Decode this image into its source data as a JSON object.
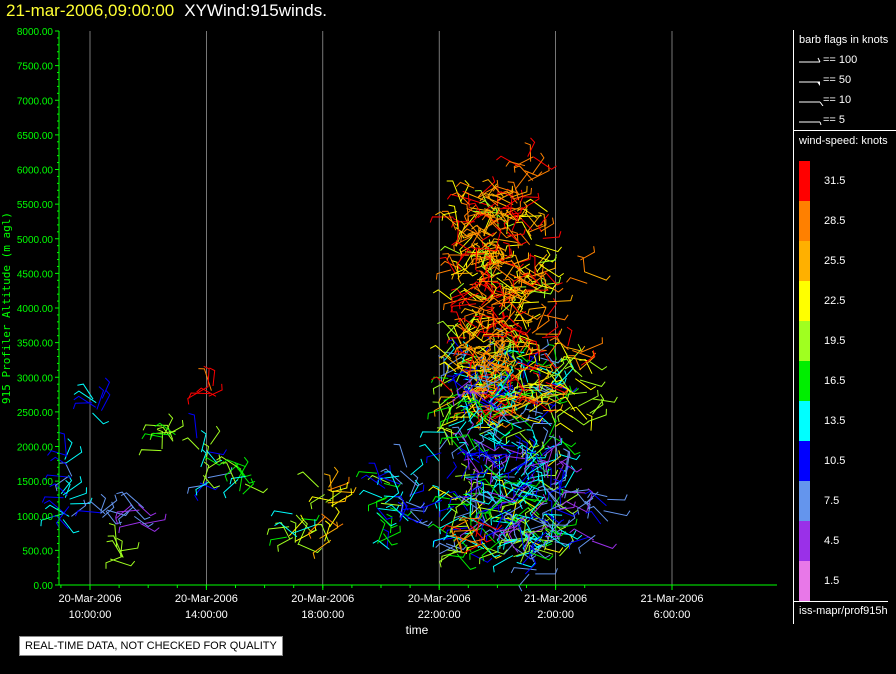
{
  "header": {
    "timestamp": "21-mar-2006,09:00:00",
    "product": "XYWind:915winds."
  },
  "chart_data": {
    "type": "scatter",
    "subtype": "wind-barb time-height",
    "ylabel": "915 Profiler Altitude (m agl)",
    "xlabel": "time",
    "ylim": [
      0,
      8000
    ],
    "y_ticks": [
      "0.00",
      "500.00",
      "1000.00",
      "1500.00",
      "2000.00",
      "2500.00",
      "3000.00",
      "3500.00",
      "4000.00",
      "4500.00",
      "5000.00",
      "5500.00",
      "6000.00",
      "6500.00",
      "7000.00",
      "7500.00",
      "8000.00"
    ],
    "x_ticks": [
      {
        "date": "20-Mar-2006",
        "time": "10:00:00"
      },
      {
        "date": "20-Mar-2006",
        "time": "14:00:00"
      },
      {
        "date": "20-Mar-2006",
        "time": "18:00:00"
      },
      {
        "date": "20-Mar-2006",
        "time": "22:00:00"
      },
      {
        "date": "21-Mar-2006",
        "time": "2:00:00"
      },
      {
        "date": "21-Mar-2006",
        "time": "6:00:00"
      }
    ],
    "x_hours_range": [
      9,
      26.5
    ],
    "grid": "vertical lines at x ticks",
    "clusters": [
      {
        "t": 9.2,
        "h": [
          800,
          1900
        ],
        "spd": [
          8,
          14
        ]
      },
      {
        "t": 10.5,
        "h": [
          900,
          1100
        ],
        "spd": [
          6,
          10
        ]
      },
      {
        "t": 10.9,
        "h": [
          350,
          550
        ],
        "spd": [
          18,
          22
        ]
      },
      {
        "t": 10.2,
        "h": [
          2450,
          2700
        ],
        "spd": [
          10,
          14
        ]
      },
      {
        "t": 11.6,
        "h": [
          800,
          1200
        ],
        "spd": [
          4,
          9
        ]
      },
      {
        "t": 12.7,
        "h": [
          1900,
          2300
        ],
        "spd": [
          15,
          20
        ]
      },
      {
        "t": 13.9,
        "h": [
          1400,
          2200
        ],
        "spd": [
          8,
          21
        ]
      },
      {
        "t": 14.1,
        "h": [
          2700,
          2900
        ],
        "spd": [
          29,
          33
        ]
      },
      {
        "t": 15.2,
        "h": [
          1300,
          1800
        ],
        "spd": [
          14,
          21
        ]
      },
      {
        "t": 17.0,
        "h": [
          500,
          1100
        ],
        "spd": [
          12,
          23
        ]
      },
      {
        "t": 18.1,
        "h": [
          550,
          1450
        ],
        "spd": [
          18,
          28
        ]
      },
      {
        "t": 20.1,
        "h": [
          500,
          1650
        ],
        "spd": [
          9,
          20
        ]
      },
      {
        "t": 20.8,
        "h": [
          800,
          1800
        ],
        "spd": [
          6,
          14
        ]
      }
    ],
    "fields": [
      {
        "t": [
          22.0,
          26.2
        ],
        "h": [
          400,
          3400
        ],
        "spd": [
          6,
          22
        ]
      },
      {
        "t": [
          22.4,
          25.8
        ],
        "h": [
          2400,
          5600
        ],
        "spd": [
          20,
          33
        ]
      },
      {
        "t": [
          23.0,
          24.8
        ],
        "h": [
          2500,
          5800
        ],
        "spd": [
          24,
          33
        ]
      },
      {
        "t": [
          22.9,
          24.2
        ],
        "h": [
          700,
          3000
        ],
        "spd": [
          3,
          18
        ]
      },
      {
        "t": [
          24.6,
          25.6
        ],
        "h": [
          150,
          1900
        ],
        "spd": [
          3,
          20
        ]
      },
      {
        "t": [
          25.4,
          26.4
        ],
        "h": [
          600,
          1800
        ],
        "spd": [
          3,
          14
        ]
      },
      {
        "t": [
          22.6,
          23.4
        ],
        "h": [
          450,
          1000
        ],
        "spd": [
          28,
          33
        ]
      },
      {
        "t": [
          26.5,
          27.3
        ],
        "h": [
          2200,
          3300
        ],
        "spd": [
          18,
          24
        ]
      },
      {
        "t": [
          26.2,
          26.9
        ],
        "h": [
          3100,
          3500
        ],
        "spd": [
          26,
          31
        ]
      },
      {
        "t": [
          27.0,
          27.8
        ],
        "h": [
          600,
          1400
        ],
        "spd": [
          3,
          10
        ]
      },
      {
        "t": [
          26.8,
          27.2
        ],
        "h": [
          4300,
          4700
        ],
        "spd": [
          25,
          30
        ]
      }
    ],
    "extra_clusters": [
      {
        "t": 25.0,
        "h": [
          5800,
          6200
        ],
        "spd": [
          27,
          32
        ]
      }
    ]
  },
  "legend": {
    "barb_title": "barb flags in knots",
    "barbs": [
      {
        "kind": "flag",
        "label": "== 100"
      },
      {
        "kind": "pennant",
        "label": "== 50"
      },
      {
        "kind": "full",
        "label": "== 10"
      },
      {
        "kind": "half",
        "label": "== 5"
      }
    ],
    "speed_title": "wind-speed: knots",
    "colorbar": [
      {
        "label": "31.5",
        "color": "#ff0000"
      },
      {
        "label": "28.5",
        "color": "#ff8000"
      },
      {
        "label": "25.5",
        "color": "#ffb000"
      },
      {
        "label": "22.5",
        "color": "#ffff00"
      },
      {
        "label": "19.5",
        "color": "#a0ff20"
      },
      {
        "label": "16.5",
        "color": "#00ee00"
      },
      {
        "label": "13.5",
        "color": "#00ffff"
      },
      {
        "label": "10.5",
        "color": "#0000ff"
      },
      {
        "label": "7.5",
        "color": "#6495ed"
      },
      {
        "label": "4.5",
        "color": "#9a30e8"
      },
      {
        "label": "1.5",
        "color": "#e878e8"
      }
    ],
    "source": "iss-mapr/prof915h"
  },
  "notice": "REAL-TIME DATA, NOT CHECKED FOR QUALITY",
  "colors": {
    "axis": "#00ff00",
    "grid": "#aaaaaa",
    "title_time": "#ffff33"
  }
}
